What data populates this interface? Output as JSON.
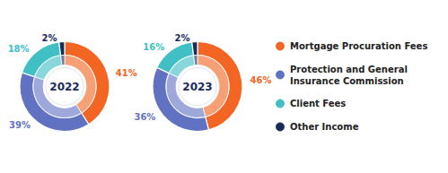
{
  "chart_data": [
    {
      "type": "pie",
      "title": "2022",
      "categories": [
        "Mortgage Procuration Fees",
        "Protection and General\nInsurance Commission",
        "Client Fees",
        "Other Income"
      ],
      "values": [
        41,
        39,
        18,
        2
      ],
      "value_labels": [
        "41%",
        "39%",
        "18%",
        "2%"
      ],
      "colors": [
        "#F26522",
        "#6272C3",
        "#40BFC4",
        "#1A2B5A"
      ],
      "data_labels": true
    },
    {
      "type": "pie",
      "title": "2023",
      "categories": [
        "Mortgage Procuration Fees",
        "Protection and General\nInsurance Commission",
        "Client Fees",
        "Other Income"
      ],
      "values": [
        46,
        36,
        16,
        2
      ],
      "value_labels": [
        "46%",
        "36%",
        "16%",
        "2%"
      ],
      "colors": [
        "#F26522",
        "#6272C3",
        "#40BFC4",
        "#1A2B5A"
      ],
      "data_labels": true,
      "legend": "right"
    }
  ]
}
